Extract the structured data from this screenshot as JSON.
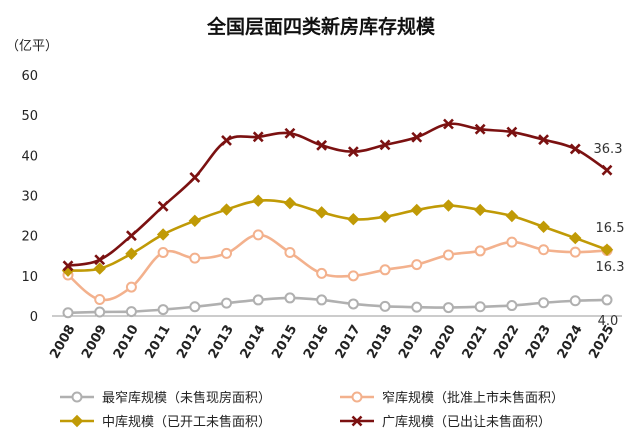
{
  "chart_data": {
    "type": "line",
    "title": "全国层面四类新房库存规模",
    "ylabel": "（亿平）",
    "xlabel": "",
    "ylim": [
      0,
      60
    ],
    "yticks": [
      0,
      10,
      20,
      30,
      40,
      50,
      60
    ],
    "grid": false,
    "legend_position": "bottom",
    "x": [
      "2008",
      "2009",
      "2010",
      "2011",
      "2012",
      "2013",
      "2014",
      "2015",
      "2016",
      "2017",
      "2018",
      "2019",
      "2020",
      "2021",
      "2022",
      "2023",
      "2024",
      "2025"
    ],
    "series": [
      {
        "name": "最窄库规模（未售现房面积）",
        "color": "#b0b0b0",
        "marker": "circle-filled",
        "values": [
          0.8,
          1.0,
          1.1,
          1.6,
          2.3,
          3.2,
          4.0,
          4.5,
          4.0,
          3.0,
          2.4,
          2.2,
          2.1,
          2.3,
          2.6,
          3.3,
          3.8,
          4.0
        ],
        "end_label": "4.0"
      },
      {
        "name": "窄库规模（批准上市未售面积）",
        "color": "#f3b18d",
        "marker": "circle-open",
        "values": [
          10.2,
          4.1,
          7.2,
          15.8,
          14.4,
          15.6,
          20.2,
          15.8,
          10.6,
          10.0,
          11.5,
          12.8,
          15.2,
          16.2,
          18.4,
          16.5,
          15.9,
          16.3
        ],
        "end_label": "16.3"
      },
      {
        "name": "中库规模（已开工未售面积）",
        "color": "#c09a06",
        "marker": "diamond",
        "values": [
          11.3,
          11.8,
          15.5,
          20.3,
          23.7,
          26.5,
          28.7,
          28.1,
          25.8,
          24.1,
          24.7,
          26.4,
          27.5,
          26.4,
          24.9,
          22.2,
          19.4,
          16.5
        ],
        "end_label": "16.5"
      },
      {
        "name": "广库规模（已出让未售面积）",
        "color": "#7b1111",
        "marker": "x",
        "values": [
          12.5,
          14.0,
          20.0,
          27.3,
          34.5,
          43.7,
          44.6,
          45.5,
          42.5,
          40.9,
          42.6,
          44.5,
          47.8,
          46.5,
          45.8,
          43.9,
          41.6,
          36.3
        ],
        "end_label": "36.3"
      }
    ]
  }
}
